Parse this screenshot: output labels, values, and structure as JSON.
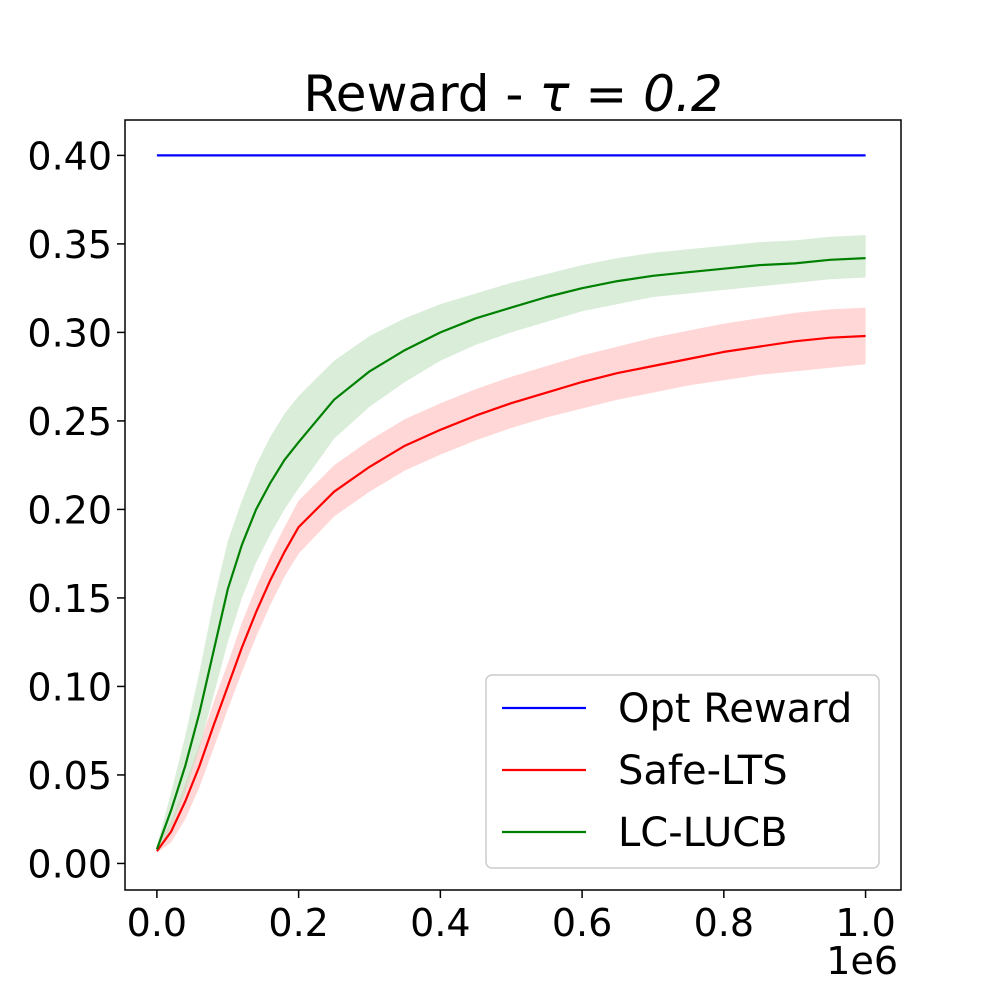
{
  "chart_data": {
    "type": "line",
    "title_prefix": "Reward - ",
    "title_math": "τ = 0.2",
    "xlabel": "",
    "ylabel": "",
    "x_offset_label": "1e6",
    "xlim": [
      -0.045,
      1.05
    ],
    "ylim": [
      -0.015,
      0.42
    ],
    "xticks": [
      0.0,
      0.2,
      0.4,
      0.6,
      0.8,
      1.0
    ],
    "xtick_labels": [
      "0.0",
      "0.2",
      "0.4",
      "0.6",
      "0.8",
      "1.0"
    ],
    "yticks": [
      0.0,
      0.05,
      0.1,
      0.15,
      0.2,
      0.25,
      0.3,
      0.35,
      0.4
    ],
    "ytick_labels": [
      "0.00",
      "0.05",
      "0.10",
      "0.15",
      "0.20",
      "0.25",
      "0.30",
      "0.35",
      "0.40"
    ],
    "grid": false,
    "legend_position": "bottom-right",
    "series": [
      {
        "name": "Opt Reward",
        "color": "#0000ff",
        "x": [
          0.0,
          1.0
        ],
        "y": [
          0.4,
          0.4
        ]
      },
      {
        "name": "Safe-LTS",
        "color": "#ff0000",
        "band_color": "#ffb6b6",
        "x": [
          0.0,
          0.02,
          0.04,
          0.06,
          0.08,
          0.1,
          0.12,
          0.14,
          0.16,
          0.18,
          0.2,
          0.25,
          0.3,
          0.35,
          0.4,
          0.45,
          0.5,
          0.55,
          0.6,
          0.65,
          0.7,
          0.75,
          0.8,
          0.85,
          0.9,
          0.95,
          1.0
        ],
        "y": [
          0.007,
          0.018,
          0.035,
          0.055,
          0.078,
          0.1,
          0.122,
          0.142,
          0.16,
          0.176,
          0.19,
          0.21,
          0.224,
          0.236,
          0.245,
          0.253,
          0.26,
          0.266,
          0.272,
          0.277,
          0.281,
          0.285,
          0.289,
          0.292,
          0.295,
          0.297,
          0.298
        ],
        "lower": [
          0.006,
          0.012,
          0.025,
          0.043,
          0.065,
          0.087,
          0.108,
          0.128,
          0.146,
          0.162,
          0.175,
          0.196,
          0.21,
          0.222,
          0.231,
          0.239,
          0.246,
          0.252,
          0.257,
          0.262,
          0.266,
          0.27,
          0.273,
          0.276,
          0.278,
          0.28,
          0.282
        ],
        "upper": [
          0.009,
          0.024,
          0.045,
          0.067,
          0.091,
          0.113,
          0.136,
          0.156,
          0.174,
          0.19,
          0.205,
          0.225,
          0.239,
          0.251,
          0.26,
          0.268,
          0.275,
          0.281,
          0.287,
          0.292,
          0.297,
          0.301,
          0.305,
          0.308,
          0.311,
          0.313,
          0.314
        ]
      },
      {
        "name": "LC-LUCB",
        "color": "#008000",
        "band_color": "#b9dfb9",
        "x": [
          0.0,
          0.02,
          0.04,
          0.06,
          0.08,
          0.1,
          0.12,
          0.14,
          0.16,
          0.18,
          0.2,
          0.25,
          0.3,
          0.35,
          0.4,
          0.45,
          0.5,
          0.55,
          0.6,
          0.65,
          0.7,
          0.75,
          0.8,
          0.85,
          0.9,
          0.95,
          1.0
        ],
        "y": [
          0.008,
          0.03,
          0.055,
          0.085,
          0.12,
          0.155,
          0.18,
          0.2,
          0.215,
          0.228,
          0.238,
          0.262,
          0.278,
          0.29,
          0.3,
          0.308,
          0.314,
          0.32,
          0.325,
          0.329,
          0.332,
          0.334,
          0.336,
          0.338,
          0.339,
          0.341,
          0.342
        ],
        "lower": [
          0.006,
          0.02,
          0.04,
          0.065,
          0.095,
          0.125,
          0.15,
          0.17,
          0.186,
          0.2,
          0.212,
          0.24,
          0.258,
          0.272,
          0.284,
          0.293,
          0.3,
          0.306,
          0.312,
          0.316,
          0.32,
          0.322,
          0.324,
          0.326,
          0.328,
          0.33,
          0.331
        ],
        "upper": [
          0.01,
          0.04,
          0.072,
          0.108,
          0.148,
          0.182,
          0.205,
          0.225,
          0.241,
          0.254,
          0.264,
          0.284,
          0.298,
          0.308,
          0.316,
          0.322,
          0.328,
          0.333,
          0.338,
          0.342,
          0.345,
          0.347,
          0.349,
          0.351,
          0.352,
          0.354,
          0.355
        ]
      }
    ]
  }
}
